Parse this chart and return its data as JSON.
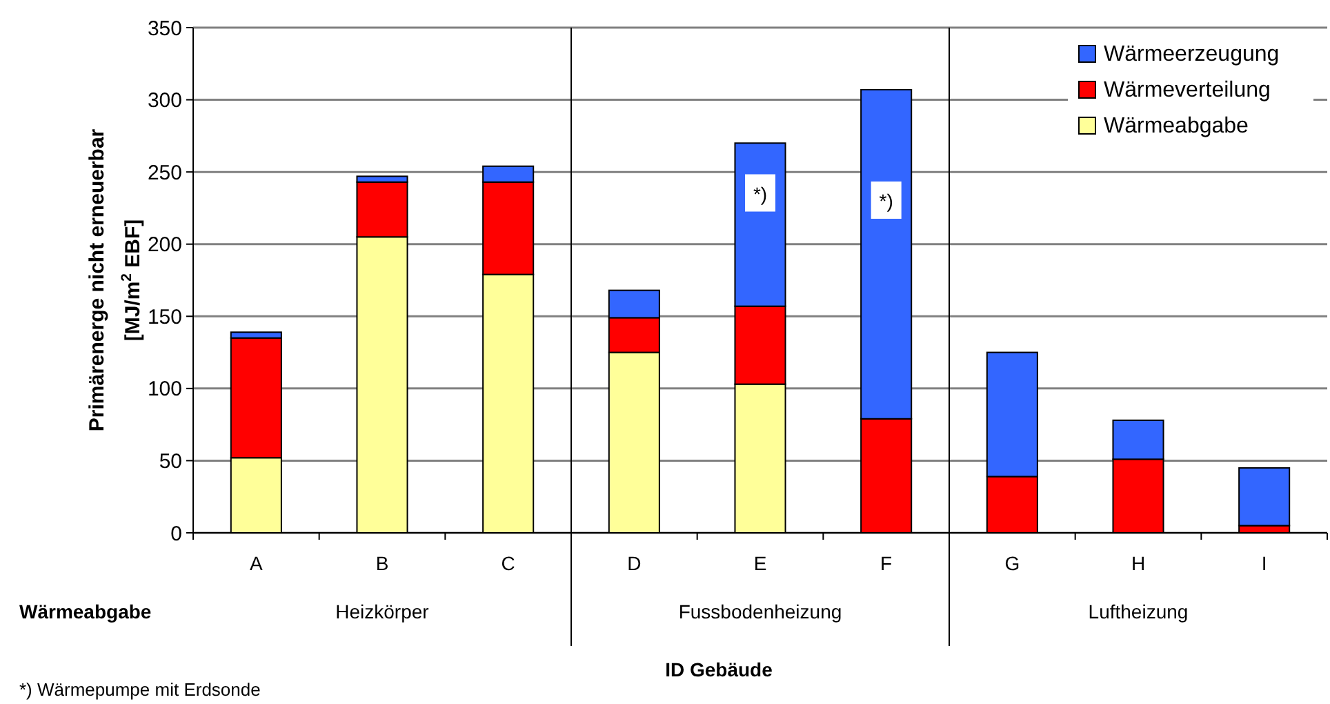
{
  "chart_data": {
    "type": "bar",
    "stacked": true,
    "ylabel": "Primärenerge nicht erneuerbar\n[MJ/m$^{2}$ EBF]",
    "xlabel": "ID Gebäude",
    "categories": [
      "A",
      "B",
      "C",
      "D",
      "E",
      "F",
      "G",
      "H",
      "I"
    ],
    "series": [
      {
        "name": "Wärmeabgabe",
        "color": "#ffff99",
        "values": [
          52,
          205,
          179,
          125,
          103,
          0,
          0,
          0,
          0
        ]
      },
      {
        "name": "Wärmeverteilung",
        "color": "#ff0000",
        "values": [
          83,
          38,
          64,
          24,
          54,
          79,
          39,
          51,
          5
        ]
      },
      {
        "name": "Wärmeerzeugung",
        "color": "#3366ff",
        "values": [
          4,
          4,
          11,
          19,
          113,
          228,
          86,
          27,
          40
        ]
      }
    ],
    "ylim": [
      0,
      350
    ],
    "yticks": [
      0,
      50,
      100,
      150,
      200,
      250,
      300,
      350
    ],
    "grid": "y",
    "legend": "top right",
    "annotations": [
      "Wärmeabgabe",
      "*) Wärmepumpe mit Erdsonde",
      "Heizkörper",
      "Fussbodenheizung",
      "Luftheizung",
      {
        "text": "*)",
        "x": "E",
        "y": 235
      },
      {
        "text": "*)",
        "x": "F",
        "y": 230
      }
    ]
  }
}
